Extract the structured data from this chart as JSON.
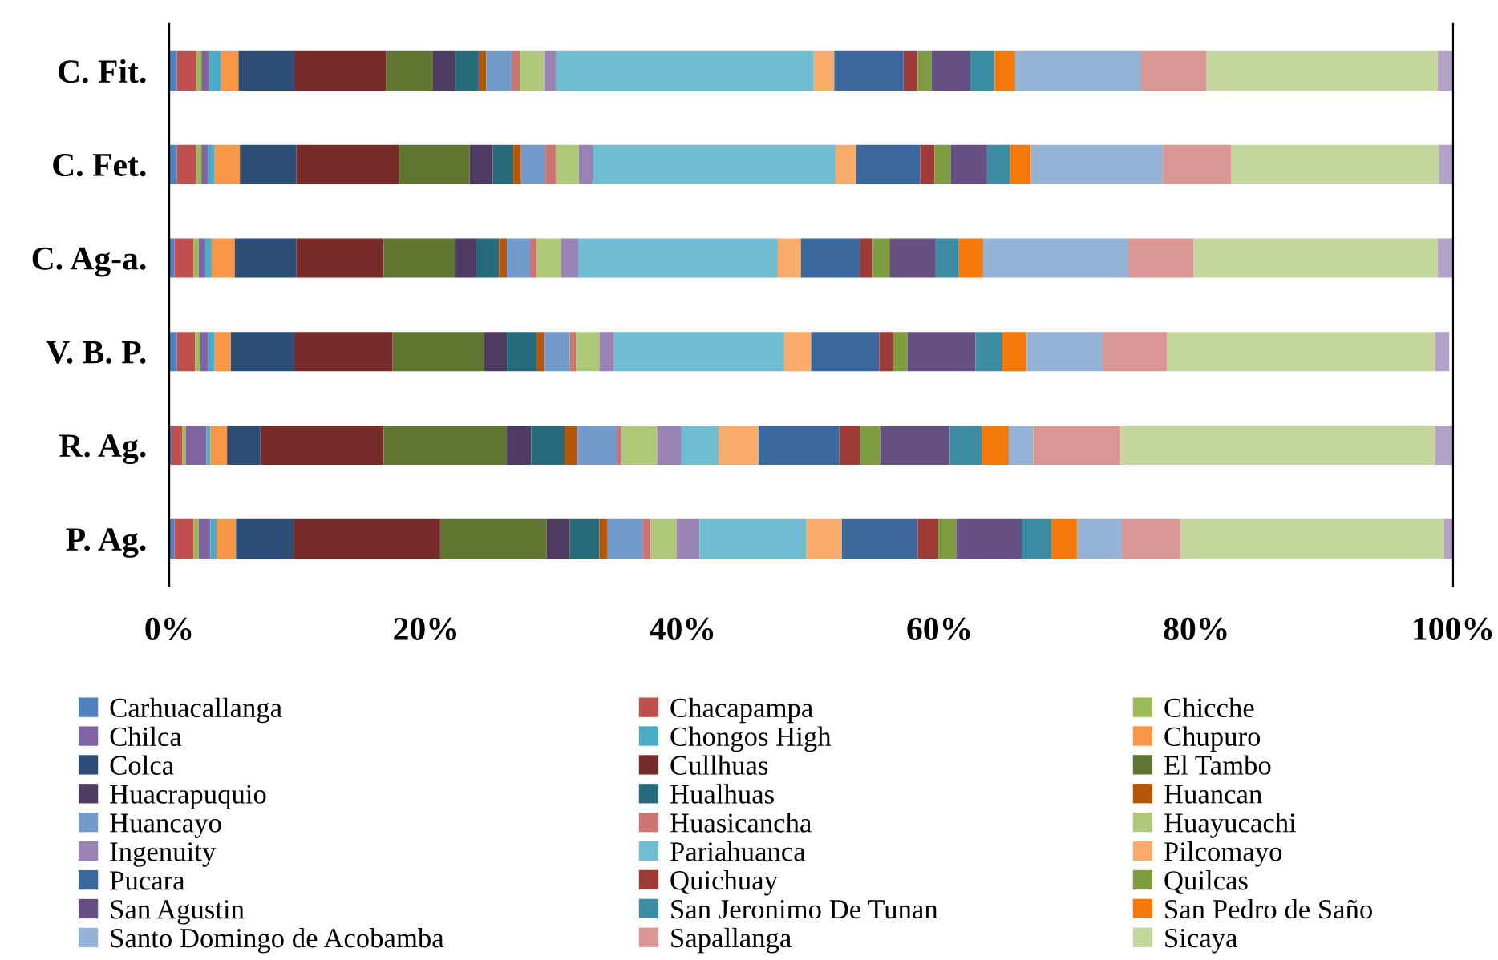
{
  "chart_data": {
    "type": "bar",
    "orientation": "horizontal",
    "stacked": true,
    "legend": "bottom",
    "grid": false,
    "categories": [
      "C. Fit.",
      "C. Fet.",
      "C. Ag-a.",
      "V. B. P.",
      "R. Ag.",
      "P. Ag."
    ],
    "xlim": [
      0,
      100
    ],
    "xticks": [
      {
        "value": 0,
        "label": "0%"
      },
      {
        "value": 20,
        "label": "20%"
      },
      {
        "value": 40,
        "label": "40%"
      },
      {
        "value": 60,
        "label": "60%"
      },
      {
        "value": 80,
        "label": "80%"
      },
      {
        "value": 100,
        "label": "100%"
      }
    ],
    "series": [
      {
        "name": "Carhuacallanga",
        "color": "#4f81bd",
        "values": [
          0.6,
          0.6,
          0.4,
          0.6,
          0.2,
          0.4
        ]
      },
      {
        "name": "Chacapampa",
        "color": "#c0504d",
        "values": [
          1.5,
          1.5,
          1.5,
          1.4,
          0.8,
          1.5
        ]
      },
      {
        "name": "Chicche",
        "color": "#9bbb59",
        "values": [
          0.4,
          0.4,
          0.4,
          0.4,
          0.3,
          0.4
        ]
      },
      {
        "name": "Chilca",
        "color": "#8064a2",
        "values": [
          0.6,
          0.5,
          0.5,
          0.6,
          1.6,
          0.9
        ]
      },
      {
        "name": "Chongos High",
        "color": "#4bacc6",
        "values": [
          0.9,
          0.5,
          0.5,
          0.5,
          0.3,
          0.5
        ]
      },
      {
        "name": "Chupuro",
        "color": "#f79646",
        "values": [
          1.4,
          2.0,
          1.8,
          1.3,
          1.3,
          1.5
        ]
      },
      {
        "name": "Colca",
        "color": "#2c4d75",
        "values": [
          4.4,
          4.4,
          4.8,
          5.0,
          2.6,
          4.5
        ]
      },
      {
        "name": "Cullhuas",
        "color": "#772c2a",
        "values": [
          7.1,
          8.0,
          6.8,
          7.6,
          9.6,
          11.4
        ]
      },
      {
        "name": "El Tambo",
        "color": "#5f7530",
        "values": [
          3.6,
          5.5,
          5.6,
          7.1,
          9.6,
          8.3
        ]
      },
      {
        "name": "Huacrapuquio",
        "color": "#4d3b62",
        "values": [
          1.8,
          1.8,
          1.6,
          1.8,
          1.9,
          1.8
        ]
      },
      {
        "name": "Hualhuas",
        "color": "#276a7c",
        "values": [
          1.8,
          1.6,
          1.8,
          2.3,
          2.6,
          2.3
        ]
      },
      {
        "name": "Huancan",
        "color": "#b65708",
        "values": [
          0.6,
          0.6,
          0.6,
          0.6,
          1.0,
          0.6
        ]
      },
      {
        "name": "Huancayo",
        "color": "#729aca",
        "values": [
          2.0,
          1.9,
          1.8,
          2.0,
          3.1,
          2.8
        ]
      },
      {
        "name": "Huasicancha",
        "color": "#cd7371",
        "values": [
          0.6,
          0.8,
          0.5,
          0.5,
          0.3,
          0.6
        ]
      },
      {
        "name": "Huayucachi",
        "color": "#afc97a",
        "values": [
          1.9,
          1.8,
          1.9,
          1.8,
          2.8,
          2.0
        ]
      },
      {
        "name": "Ingenuity",
        "color": "#9983b5",
        "values": [
          0.9,
          1.1,
          1.4,
          1.1,
          1.9,
          1.8
        ]
      },
      {
        "name": "Pariahuanca",
        "color": "#6fbdd1",
        "values": [
          20.1,
          18.9,
          15.5,
          13.3,
          2.9,
          8.3
        ]
      },
      {
        "name": "Pilcomayo",
        "color": "#f9ab6b",
        "values": [
          1.6,
          1.6,
          1.8,
          2.1,
          3.1,
          2.8
        ]
      },
      {
        "name": "Pucara",
        "color": "#3a679c",
        "values": [
          5.4,
          5.0,
          4.6,
          5.3,
          6.3,
          5.9
        ]
      },
      {
        "name": "Quichuay",
        "color": "#9e3b39",
        "values": [
          1.1,
          1.1,
          1.0,
          1.1,
          1.6,
          1.6
        ]
      },
      {
        "name": "Quilcas",
        "color": "#7e9d40",
        "values": [
          1.1,
          1.3,
          1.3,
          1.1,
          1.6,
          1.4
        ]
      },
      {
        "name": "San Agustin",
        "color": "#664f82",
        "values": [
          3.0,
          2.8,
          3.6,
          5.3,
          5.4,
          5.1
        ]
      },
      {
        "name": "San Jeronimo De Tunan",
        "color": "#3c8da3",
        "values": [
          1.9,
          1.8,
          1.8,
          2.1,
          2.5,
          2.3
        ]
      },
      {
        "name": "San Pedro de Saño",
        "color": "#f5780a",
        "values": [
          1.6,
          1.6,
          1.9,
          1.9,
          2.1,
          2.0
        ]
      },
      {
        "name": "Santo Domingo de Acobamba",
        "color": "#95b3d7",
        "values": [
          9.8,
          10.3,
          11.3,
          5.9,
          1.9,
          3.5
        ]
      },
      {
        "name": "Sapallanga",
        "color": "#d99694",
        "values": [
          5.1,
          5.3,
          5.1,
          5.0,
          6.8,
          4.6
        ]
      },
      {
        "name": "Sicaya",
        "color": "#c3d69b",
        "values": [
          18.0,
          16.2,
          19.0,
          20.9,
          24.5,
          20.5
        ]
      },
      {
        "color": "#b3a2c7",
        "values": [
          1.2,
          1.1,
          1.2,
          1.1,
          1.6,
          1.1
        ]
      }
    ]
  }
}
